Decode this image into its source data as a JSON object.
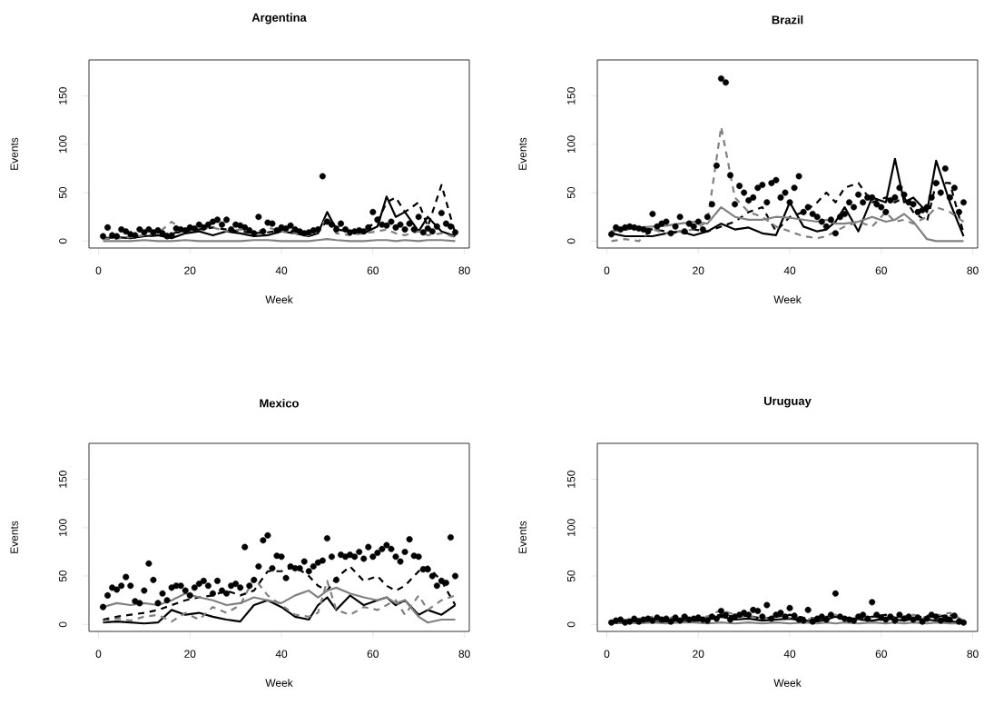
{
  "chart_data": [
    {
      "type": "line",
      "title": "Argentina",
      "xlabel": "Week",
      "ylabel": "Events",
      "xlim": [
        -2.08,
        81.08
      ],
      "ylim": [
        -7.2,
        187.2
      ],
      "xticks": [
        0,
        20,
        40,
        60,
        80
      ],
      "yticks": [
        0,
        50,
        100,
        150
      ],
      "series": [
        {
          "type": "scatter",
          "marker": "circle",
          "color": "#000000",
          "x": [
            1,
            2,
            3,
            4,
            5,
            6,
            7,
            8,
            9,
            10,
            11,
            12,
            13,
            14,
            15,
            16,
            17,
            18,
            19,
            20,
            21,
            22,
            23,
            24,
            25,
            26,
            27,
            28,
            29,
            30,
            31,
            32,
            33,
            34,
            35,
            36,
            37,
            38,
            39,
            40,
            41,
            42,
            43,
            44,
            45,
            46,
            47,
            48,
            49,
            50,
            51,
            52,
            53,
            54,
            55,
            56,
            57,
            58,
            59,
            60,
            61,
            62,
            63,
            64,
            65,
            66,
            67,
            68,
            69,
            70,
            71,
            72,
            73,
            74,
            75,
            76,
            77,
            78
          ],
          "values": [
            5,
            14,
            6,
            5,
            12,
            10,
            7,
            6,
            12,
            9,
            12,
            9,
            11,
            8,
            5,
            6,
            13,
            12,
            11,
            14,
            13,
            17,
            14,
            17,
            20,
            22,
            17,
            22,
            12,
            17,
            16,
            14,
            11,
            8,
            25,
            10,
            19,
            18,
            11,
            14,
            13,
            16,
            12,
            10,
            8,
            9,
            11,
            12,
            67,
            20,
            17,
            12,
            18,
            12,
            9,
            10,
            11,
            10,
            14,
            30,
            22,
            17,
            16,
            20,
            14,
            17,
            12,
            18,
            12,
            25,
            9,
            13,
            10,
            15,
            29,
            18,
            15,
            9
          ]
        },
        {
          "line_style": "solid",
          "color": "#000000",
          "x": [
            1,
            4,
            7,
            10,
            13,
            16,
            19,
            22,
            25,
            28,
            31,
            34,
            37,
            40,
            43,
            46,
            48,
            50,
            52,
            55,
            58,
            61,
            63,
            65,
            67,
            70,
            72,
            75,
            78
          ],
          "values": [
            3,
            4,
            3,
            5,
            6,
            3,
            8,
            10,
            6,
            10,
            8,
            5,
            6,
            10,
            8,
            5,
            8,
            30,
            12,
            10,
            8,
            15,
            46,
            25,
            30,
            10,
            25,
            10,
            5
          ]
        },
        {
          "line_style": "dashed",
          "color": "#000000",
          "x": [
            1,
            4,
            7,
            10,
            13,
            16,
            19,
            22,
            25,
            28,
            31,
            34,
            37,
            40,
            43,
            46,
            48,
            50,
            52,
            55,
            58,
            61,
            63,
            65,
            67,
            70,
            72,
            75,
            78
          ],
          "values": [
            2,
            3,
            4,
            5,
            6,
            8,
            10,
            12,
            14,
            12,
            10,
            8,
            9,
            11,
            10,
            8,
            12,
            20,
            15,
            10,
            12,
            20,
            40,
            45,
            30,
            40,
            15,
            58,
            8
          ]
        },
        {
          "line_style": "solid",
          "color": "#808080",
          "x": [
            1,
            4,
            7,
            10,
            13,
            16,
            19,
            22,
            25,
            28,
            31,
            34,
            37,
            40,
            43,
            46,
            48,
            50,
            52,
            55,
            58,
            61,
            63,
            65,
            67,
            70,
            72,
            75,
            78
          ],
          "values": [
            0,
            0,
            0,
            1,
            0,
            0,
            1,
            0,
            0,
            0,
            0,
            1,
            1,
            0,
            0,
            0,
            1,
            2,
            1,
            0,
            0,
            1,
            1,
            0,
            1,
            0,
            1,
            1,
            0
          ]
        },
        {
          "line_style": "dashed",
          "color": "#808080",
          "x": [
            1,
            4,
            7,
            10,
            13,
            16,
            19,
            22,
            25,
            28,
            31,
            34,
            37,
            40,
            43,
            46,
            48,
            50,
            52,
            55,
            58,
            61,
            63,
            65,
            67,
            70,
            72,
            75,
            78
          ],
          "values": [
            2,
            3,
            4,
            6,
            8,
            20,
            10,
            12,
            14,
            10,
            12,
            8,
            14,
            10,
            8,
            6,
            10,
            25,
            8,
            6,
            8,
            10,
            12,
            8,
            6,
            10,
            6,
            8,
            4
          ]
        }
      ]
    },
    {
      "type": "line",
      "title": "Brazil",
      "xlabel": "Week",
      "ylabel": "Events",
      "xlim": [
        -2.08,
        81.08
      ],
      "ylim": [
        -7.2,
        187.2
      ],
      "xticks": [
        0,
        20,
        40,
        60,
        80
      ],
      "yticks": [
        0,
        50,
        100,
        150
      ],
      "series": [
        {
          "type": "scatter",
          "marker": "circle",
          "color": "#000000",
          "x": [
            1,
            2,
            3,
            4,
            5,
            6,
            7,
            8,
            9,
            10,
            11,
            12,
            13,
            14,
            15,
            16,
            17,
            18,
            19,
            20,
            21,
            22,
            23,
            24,
            25,
            26,
            27,
            28,
            29,
            30,
            31,
            32,
            33,
            34,
            35,
            36,
            37,
            38,
            39,
            40,
            41,
            42,
            43,
            44,
            45,
            46,
            47,
            48,
            49,
            50,
            51,
            52,
            53,
            54,
            55,
            56,
            57,
            58,
            59,
            60,
            61,
            62,
            63,
            64,
            65,
            66,
            67,
            68,
            69,
            70,
            71,
            72,
            73,
            74,
            75,
            76,
            77,
            78
          ],
          "values": [
            7,
            14,
            12,
            14,
            15,
            14,
            13,
            12,
            10,
            28,
            15,
            18,
            20,
            8,
            15,
            25,
            10,
            18,
            15,
            20,
            12,
            25,
            38,
            78,
            168,
            164,
            68,
            38,
            57,
            50,
            42,
            45,
            55,
            58,
            40,
            60,
            63,
            45,
            50,
            40,
            55,
            67,
            30,
            35,
            28,
            25,
            20,
            15,
            22,
            8,
            25,
            28,
            40,
            35,
            48,
            40,
            45,
            45,
            38,
            35,
            30,
            42,
            45,
            55,
            48,
            40,
            38,
            30,
            32,
            35,
            45,
            60,
            50,
            75,
            45,
            55,
            30,
            40
          ]
        },
        {
          "line_style": "solid",
          "color": "#000000",
          "x": [
            1,
            4,
            7,
            10,
            13,
            16,
            19,
            22,
            25,
            28,
            31,
            34,
            37,
            40,
            43,
            46,
            48,
            50,
            52,
            55,
            58,
            61,
            63,
            65,
            67,
            70,
            72,
            75,
            78
          ],
          "values": [
            8,
            5,
            5,
            5,
            8,
            10,
            6,
            10,
            18,
            12,
            14,
            8,
            6,
            40,
            15,
            10,
            12,
            20,
            35,
            10,
            45,
            40,
            85,
            40,
            45,
            30,
            83,
            40,
            5
          ]
        },
        {
          "line_style": "dashed",
          "color": "#000000",
          "x": [
            1,
            4,
            7,
            10,
            13,
            16,
            19,
            22,
            25,
            28,
            31,
            34,
            37,
            40,
            43,
            46,
            48,
            50,
            52,
            55,
            58,
            61,
            63,
            65,
            67,
            70,
            72,
            75,
            78
          ],
          "values": [
            10,
            12,
            14,
            12,
            10,
            8,
            12,
            10,
            15,
            20,
            30,
            35,
            10,
            25,
            30,
            40,
            50,
            40,
            55,
            60,
            40,
            45,
            40,
            45,
            30,
            20,
            60,
            60,
            8
          ]
        },
        {
          "line_style": "solid",
          "color": "#808080",
          "x": [
            1,
            4,
            7,
            10,
            13,
            16,
            19,
            22,
            25,
            28,
            31,
            34,
            37,
            40,
            43,
            46,
            48,
            50,
            52,
            55,
            58,
            61,
            63,
            65,
            67,
            70,
            72,
            75,
            78
          ],
          "values": [
            10,
            12,
            14,
            15,
            16,
            18,
            20,
            18,
            35,
            25,
            22,
            22,
            25,
            24,
            22,
            20,
            22,
            18,
            18,
            20,
            25,
            20,
            22,
            28,
            20,
            2,
            0,
            0,
            0
          ]
        },
        {
          "line_style": "dashed",
          "color": "#808080",
          "x": [
            1,
            4,
            7,
            10,
            13,
            16,
            19,
            22,
            25,
            28,
            31,
            34,
            37,
            40,
            43,
            46,
            48,
            50,
            52,
            55,
            58,
            61,
            63,
            65,
            67,
            70,
            72,
            75,
            78
          ],
          "values": [
            0,
            2,
            0,
            12,
            8,
            10,
            12,
            20,
            118,
            45,
            30,
            25,
            15,
            10,
            5,
            3,
            5,
            10,
            15,
            20,
            15,
            30,
            20,
            22,
            18,
            25,
            35,
            30,
            20
          ]
        }
      ]
    },
    {
      "type": "line",
      "title": "Mexico",
      "xlabel": "Week",
      "ylabel": "Events",
      "xlim": [
        -2.08,
        81.08
      ],
      "ylim": [
        -7.2,
        187.2
      ],
      "xticks": [
        0,
        20,
        40,
        60,
        80
      ],
      "yticks": [
        0,
        50,
        100,
        150
      ],
      "series": [
        {
          "type": "scatter",
          "marker": "circle",
          "color": "#000000",
          "x": [
            1,
            2,
            3,
            4,
            5,
            6,
            7,
            8,
            9,
            10,
            11,
            12,
            13,
            14,
            15,
            16,
            17,
            18,
            19,
            20,
            21,
            22,
            23,
            24,
            25,
            26,
            27,
            28,
            29,
            30,
            31,
            32,
            33,
            34,
            35,
            36,
            37,
            38,
            39,
            40,
            41,
            42,
            43,
            44,
            45,
            46,
            47,
            48,
            49,
            50,
            51,
            52,
            53,
            54,
            55,
            56,
            57,
            58,
            59,
            60,
            61,
            62,
            63,
            64,
            65,
            66,
            67,
            68,
            69,
            70,
            71,
            72,
            73,
            74,
            75,
            76,
            77,
            78
          ],
          "values": [
            18,
            30,
            38,
            36,
            40,
            49,
            40,
            24,
            22,
            35,
            63,
            46,
            22,
            32,
            25,
            38,
            40,
            40,
            35,
            30,
            38,
            42,
            45,
            40,
            32,
            45,
            35,
            32,
            40,
            42,
            38,
            80,
            40,
            46,
            60,
            87,
            92,
            58,
            71,
            70,
            48,
            60,
            58,
            58,
            65,
            55,
            60,
            64,
            66,
            89,
            70,
            46,
            72,
            70,
            72,
            70,
            75,
            68,
            80,
            70,
            74,
            78,
            82,
            78,
            70,
            65,
            75,
            88,
            71,
            70,
            57,
            57,
            50,
            40,
            45,
            43,
            90,
            50
          ]
        },
        {
          "line_style": "solid",
          "color": "#000000",
          "x": [
            1,
            4,
            7,
            10,
            13,
            16,
            19,
            22,
            25,
            28,
            31,
            34,
            37,
            40,
            43,
            46,
            48,
            50,
            52,
            55,
            58,
            61,
            63,
            65,
            67,
            70,
            72,
            75,
            78
          ],
          "values": [
            2,
            3,
            2,
            1,
            2,
            15,
            10,
            12,
            8,
            5,
            3,
            20,
            25,
            18,
            8,
            5,
            20,
            28,
            15,
            30,
            20,
            25,
            28,
            20,
            25,
            10,
            15,
            10,
            20
          ]
        },
        {
          "line_style": "dashed",
          "color": "#000000",
          "x": [
            1,
            4,
            7,
            10,
            13,
            16,
            19,
            22,
            25,
            28,
            31,
            34,
            37,
            40,
            43,
            46,
            48,
            50,
            52,
            55,
            58,
            61,
            63,
            65,
            67,
            70,
            72,
            75,
            78
          ],
          "values": [
            5,
            8,
            10,
            12,
            15,
            20,
            25,
            28,
            30,
            35,
            30,
            35,
            55,
            55,
            60,
            50,
            40,
            35,
            48,
            60,
            45,
            50,
            40,
            35,
            40,
            55,
            60,
            45,
            20
          ]
        },
        {
          "line_style": "solid",
          "color": "#808080",
          "x": [
            1,
            4,
            7,
            10,
            13,
            16,
            19,
            22,
            25,
            28,
            31,
            34,
            37,
            40,
            43,
            46,
            48,
            50,
            52,
            55,
            58,
            61,
            63,
            65,
            67,
            70,
            72,
            75,
            78
          ],
          "values": [
            18,
            22,
            20,
            22,
            20,
            25,
            32,
            28,
            25,
            20,
            22,
            28,
            25,
            22,
            30,
            35,
            28,
            35,
            38,
            32,
            28,
            25,
            28,
            22,
            25,
            8,
            2,
            5,
            5
          ]
        },
        {
          "line_style": "dashed",
          "color": "#808080",
          "x": [
            1,
            4,
            7,
            10,
            13,
            16,
            19,
            22,
            25,
            28,
            31,
            34,
            37,
            40,
            43,
            46,
            48,
            50,
            52,
            55,
            58,
            61,
            63,
            65,
            67,
            70,
            72,
            75,
            78
          ],
          "values": [
            3,
            6,
            4,
            8,
            10,
            3,
            12,
            5,
            18,
            12,
            20,
            48,
            30,
            20,
            10,
            8,
            12,
            45,
            15,
            10,
            18,
            15,
            20,
            25,
            10,
            30,
            15,
            25,
            30
          ]
        }
      ]
    },
    {
      "type": "line",
      "title": "Uruguay",
      "xlabel": "Week",
      "ylabel": "Events",
      "xlim": [
        -2.08,
        81.08
      ],
      "ylim": [
        -7.2,
        187.2
      ],
      "xticks": [
        0,
        20,
        40,
        60,
        80
      ],
      "yticks": [
        0,
        50,
        100,
        150
      ],
      "series": [
        {
          "type": "scatter",
          "marker": "circle",
          "color": "#000000",
          "x": [
            1,
            2,
            3,
            4,
            5,
            6,
            7,
            8,
            9,
            10,
            11,
            12,
            13,
            14,
            15,
            16,
            17,
            18,
            19,
            20,
            21,
            22,
            23,
            24,
            25,
            26,
            27,
            28,
            29,
            30,
            31,
            32,
            33,
            34,
            35,
            36,
            37,
            38,
            39,
            40,
            41,
            42,
            43,
            44,
            45,
            46,
            47,
            48,
            49,
            50,
            51,
            52,
            53,
            54,
            55,
            56,
            57,
            58,
            59,
            60,
            61,
            62,
            63,
            64,
            65,
            66,
            67,
            68,
            69,
            70,
            71,
            72,
            73,
            74,
            75,
            76,
            77,
            78
          ],
          "values": [
            2,
            4,
            5,
            2,
            3,
            6,
            3,
            5,
            6,
            4,
            7,
            5,
            6,
            3,
            7,
            4,
            8,
            5,
            6,
            7,
            5,
            4,
            8,
            6,
            14,
            10,
            5,
            8,
            10,
            12,
            10,
            15,
            14,
            8,
            20,
            6,
            10,
            12,
            8,
            17,
            9,
            5,
            4,
            15,
            3,
            6,
            8,
            5,
            10,
            32,
            8,
            6,
            5,
            4,
            8,
            10,
            6,
            23,
            10,
            7,
            5,
            8,
            4,
            10,
            6,
            8,
            5,
            7,
            3,
            6,
            10,
            8,
            4,
            7,
            5,
            9,
            3,
            2
          ]
        },
        {
          "line_style": "solid",
          "color": "#000000",
          "x": [
            1,
            4,
            7,
            10,
            13,
            16,
            19,
            22,
            25,
            28,
            31,
            34,
            37,
            40,
            43,
            46,
            48,
            50,
            52,
            55,
            58,
            61,
            63,
            65,
            67,
            70,
            72,
            75,
            78
          ],
          "values": [
            1,
            2,
            3,
            2,
            3,
            4,
            3,
            5,
            8,
            5,
            6,
            4,
            5,
            6,
            4,
            3,
            5,
            8,
            6,
            5,
            4,
            6,
            5,
            4,
            6,
            5,
            4,
            3,
            2
          ]
        },
        {
          "line_style": "dashed",
          "color": "#000000",
          "x": [
            1,
            4,
            7,
            10,
            13,
            16,
            19,
            22,
            25,
            28,
            31,
            34,
            37,
            40,
            43,
            46,
            48,
            50,
            52,
            55,
            58,
            61,
            63,
            65,
            67,
            70,
            72,
            75,
            78
          ],
          "values": [
            3,
            4,
            5,
            6,
            5,
            6,
            7,
            8,
            10,
            8,
            9,
            6,
            8,
            10,
            7,
            6,
            8,
            9,
            7,
            6,
            8,
            10,
            7,
            8,
            6,
            9,
            8,
            10,
            3
          ]
        },
        {
          "line_style": "solid",
          "color": "#808080",
          "x": [
            1,
            4,
            7,
            10,
            13,
            16,
            19,
            22,
            25,
            28,
            31,
            34,
            37,
            40,
            43,
            46,
            48,
            50,
            52,
            55,
            58,
            61,
            63,
            65,
            67,
            70,
            72,
            75,
            78
          ],
          "values": [
            1,
            2,
            1,
            2,
            1,
            2,
            2,
            1,
            2,
            1,
            2,
            1,
            2,
            1,
            2,
            1,
            2,
            1,
            2,
            1,
            2,
            1,
            2,
            1,
            2,
            1,
            2,
            1,
            1
          ]
        },
        {
          "line_style": "dashed",
          "color": "#808080",
          "x": [
            1,
            4,
            7,
            10,
            13,
            16,
            19,
            22,
            25,
            28,
            31,
            34,
            37,
            40,
            43,
            46,
            48,
            50,
            52,
            55,
            58,
            61,
            63,
            65,
            67,
            70,
            72,
            75,
            78
          ],
          "values": [
            3,
            5,
            6,
            8,
            6,
            9,
            7,
            8,
            15,
            10,
            8,
            6,
            9,
            7,
            5,
            6,
            8,
            10,
            6,
            5,
            7,
            9,
            6,
            8,
            10,
            7,
            9,
            12,
            4
          ]
        }
      ]
    }
  ]
}
